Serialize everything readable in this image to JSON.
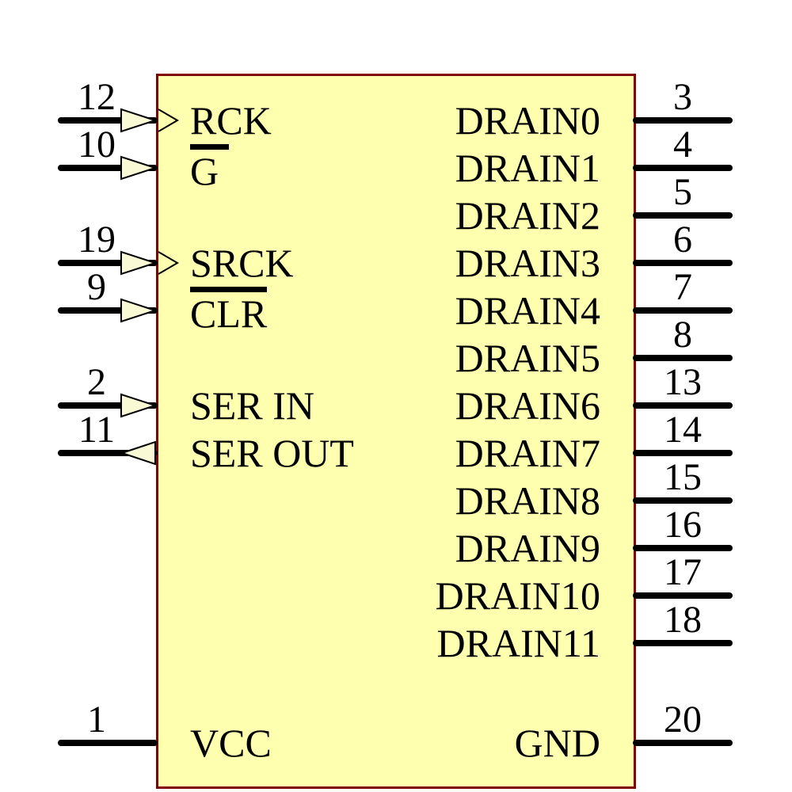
{
  "component": {
    "kind": "schematic-symbol",
    "colors": {
      "body_fill": "#ffffb0",
      "body_border": "#7f0000",
      "wire": "#000000",
      "text": "#000000",
      "arrow_fill": "#f9f9d6"
    },
    "pins": {
      "left": [
        {
          "number": "12",
          "label": "RCK",
          "direction": "input",
          "clock": true,
          "overline": false
        },
        {
          "number": "10",
          "label": "G",
          "direction": "input",
          "clock": false,
          "overline": true
        },
        {
          "number": "19",
          "label": "SRCK",
          "direction": "input",
          "clock": true,
          "overline": false
        },
        {
          "number": "9",
          "label": "CLR",
          "direction": "input",
          "clock": false,
          "overline": true
        },
        {
          "number": "2",
          "label": "SER IN",
          "direction": "input",
          "clock": false,
          "overline": false
        },
        {
          "number": "11",
          "label": "SER OUT",
          "direction": "output",
          "clock": false,
          "overline": false
        },
        {
          "number": "1",
          "label": "VCC",
          "direction": "power",
          "clock": false,
          "overline": false
        }
      ],
      "right": [
        {
          "number": "3",
          "label": "DRAIN0"
        },
        {
          "number": "4",
          "label": "DRAIN1"
        },
        {
          "number": "5",
          "label": "DRAIN2"
        },
        {
          "number": "6",
          "label": "DRAIN3"
        },
        {
          "number": "7",
          "label": "DRAIN4"
        },
        {
          "number": "8",
          "label": "DRAIN5"
        },
        {
          "number": "13",
          "label": "DRAIN6"
        },
        {
          "number": "14",
          "label": "DRAIN7"
        },
        {
          "number": "15",
          "label": "DRAIN8"
        },
        {
          "number": "16",
          "label": "DRAIN9"
        },
        {
          "number": "17",
          "label": "DRAIN10"
        },
        {
          "number": "18",
          "label": "DRAIN11"
        },
        {
          "number": "20",
          "label": "GND"
        }
      ]
    }
  }
}
